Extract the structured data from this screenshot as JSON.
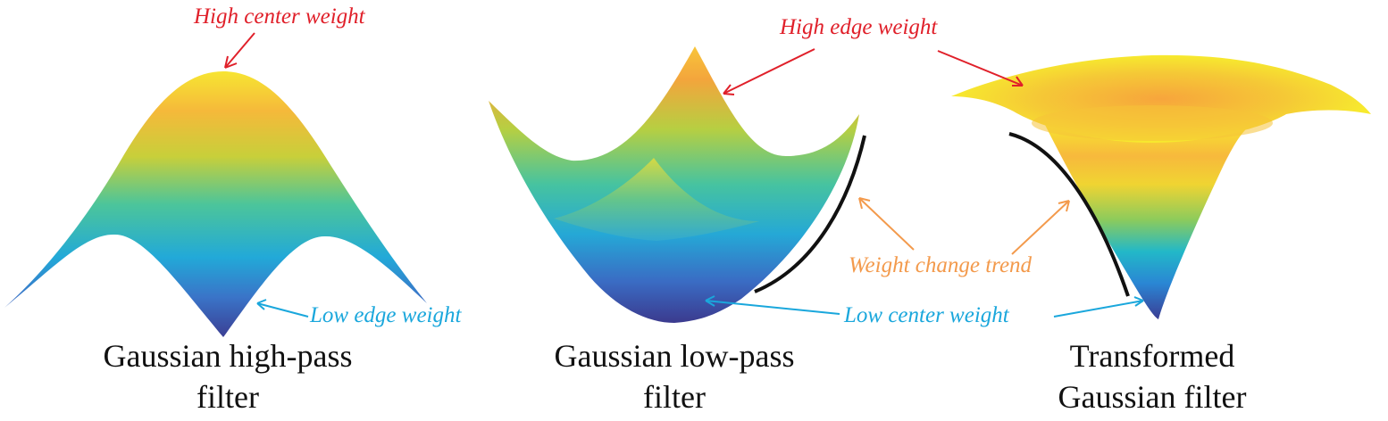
{
  "colors": {
    "high_label": "#e0202a",
    "low_label": "#1aa7dc",
    "trend_label": "#f39a4c",
    "surface_top": "#f7e532",
    "surface_mid": "#2cc0b0",
    "surface_low": "#3b4a9e",
    "trend_curve": "#111111"
  },
  "annotations": {
    "high_center_weight": "High center weight",
    "high_edge_weight": "High edge weight",
    "low_edge_weight": "Low edge weight",
    "low_center_weight": "Low center weight",
    "weight_change_trend": "Weight change trend"
  },
  "panels": [
    {
      "caption_line1": "Gaussian high-pass",
      "caption_line2": "filter"
    },
    {
      "caption_line1": "Gaussian low-pass",
      "caption_line2": "filter"
    },
    {
      "caption_line1": "Transformed",
      "caption_line2": "Gaussian filter"
    }
  ]
}
